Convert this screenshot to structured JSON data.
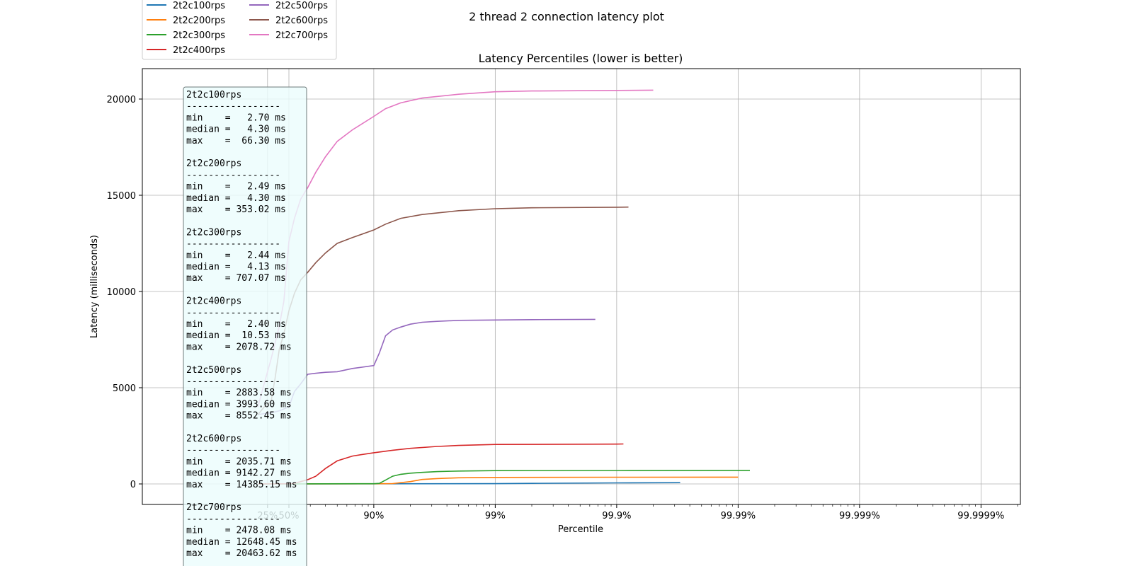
{
  "figure_title": "2 thread 2 connection latency plot",
  "chart_data": {
    "type": "line",
    "title": "Latency Percentiles (lower is better)",
    "xlabel": "Percentile",
    "ylabel": "Latency (milliseconds)",
    "x_scale": "log of 1/(1 - percentile)",
    "xlim_percentile": [
      "~10%",
      "99.9999%"
    ],
    "ylim": [
      -1200,
      21500
    ],
    "x_ticks": [
      {
        "p": 0.25,
        "label": "25%"
      },
      {
        "p": 0.5,
        "label": "50%"
      },
      {
        "p": 0.9,
        "label": "90%"
      },
      {
        "p": 0.99,
        "label": "99%"
      },
      {
        "p": 0.999,
        "label": "99.9%"
      },
      {
        "p": 0.9999,
        "label": "99.99%"
      },
      {
        "p": 0.99999,
        "label": "99.999%"
      },
      {
        "p": 0.999999,
        "label": "99.9999%"
      }
    ],
    "y_ticks": [
      0,
      5000,
      10000,
      15000,
      20000
    ],
    "grid": true,
    "legend_position": "top-left, above plot, 2 columns",
    "series": [
      {
        "name": "2t2c100rps",
        "color": "#1f77b4",
        "points": [
          [
            0.1,
            5
          ],
          [
            0.5,
            5
          ],
          [
            0.9,
            6
          ],
          [
            0.99,
            15
          ],
          [
            0.995,
            30
          ],
          [
            0.999,
            55
          ],
          [
            0.9995,
            62
          ],
          [
            0.9997,
            66.3
          ]
        ]
      },
      {
        "name": "2t2c200rps",
        "color": "#ff7f0e",
        "points": [
          [
            0.1,
            4
          ],
          [
            0.5,
            5
          ],
          [
            0.9,
            6
          ],
          [
            0.93,
            20
          ],
          [
            0.95,
            120
          ],
          [
            0.96,
            230
          ],
          [
            0.97,
            280
          ],
          [
            0.98,
            320
          ],
          [
            0.99,
            340
          ],
          [
            0.999,
            350
          ],
          [
            0.9999,
            353.02
          ]
        ]
      },
      {
        "name": "2t2c300rps",
        "color": "#2ca02c",
        "points": [
          [
            0.1,
            4
          ],
          [
            0.5,
            5
          ],
          [
            0.9,
            10
          ],
          [
            0.91,
            30
          ],
          [
            0.92,
            200
          ],
          [
            0.93,
            400
          ],
          [
            0.94,
            500
          ],
          [
            0.95,
            560
          ],
          [
            0.96,
            600
          ],
          [
            0.97,
            640
          ],
          [
            0.98,
            670
          ],
          [
            0.99,
            690
          ],
          [
            0.999,
            700
          ],
          [
            0.9999,
            705
          ],
          [
            0.99992,
            707.07
          ]
        ]
      },
      {
        "name": "2t2c400rps",
        "color": "#d62728",
        "points": [
          [
            0.1,
            3
          ],
          [
            0.3,
            5
          ],
          [
            0.5,
            10
          ],
          [
            0.55,
            30
          ],
          [
            0.6,
            120
          ],
          [
            0.65,
            220
          ],
          [
            0.7,
            400
          ],
          [
            0.75,
            800
          ],
          [
            0.8,
            1200
          ],
          [
            0.85,
            1450
          ],
          [
            0.9,
            1620
          ],
          [
            0.93,
            1750
          ],
          [
            0.95,
            1850
          ],
          [
            0.97,
            1950
          ],
          [
            0.98,
            2000
          ],
          [
            0.99,
            2050
          ],
          [
            0.999,
            2070
          ],
          [
            0.99912,
            2078.72
          ]
        ]
      },
      {
        "name": "2t2c500rps",
        "color": "#9467bd",
        "points": [
          [
            0.1,
            3600
          ],
          [
            0.2,
            3650
          ],
          [
            0.3,
            3700
          ],
          [
            0.4,
            3800
          ],
          [
            0.5,
            4000
          ],
          [
            0.55,
            4800
          ],
          [
            0.6,
            5200
          ],
          [
            0.65,
            5700
          ],
          [
            0.7,
            5750
          ],
          [
            0.75,
            5800
          ],
          [
            0.8,
            5830
          ],
          [
            0.85,
            6000
          ],
          [
            0.9,
            6150
          ],
          [
            0.91,
            6800
          ],
          [
            0.92,
            7700
          ],
          [
            0.93,
            8000
          ],
          [
            0.94,
            8150
          ],
          [
            0.95,
            8300
          ],
          [
            0.96,
            8400
          ],
          [
            0.97,
            8450
          ],
          [
            0.98,
            8500
          ],
          [
            0.99,
            8520
          ],
          [
            0.995,
            8535
          ],
          [
            0.9985,
            8552.45
          ]
        ]
      },
      {
        "name": "2t2c600rps",
        "color": "#8c564b",
        "points": [
          [
            0.1,
            3600
          ],
          [
            0.2,
            4000
          ],
          [
            0.3,
            4300
          ],
          [
            0.35,
            5500
          ],
          [
            0.4,
            7000
          ],
          [
            0.45,
            7800
          ],
          [
            0.5,
            9000
          ],
          [
            0.55,
            9900
          ],
          [
            0.6,
            10600
          ],
          [
            0.65,
            11000
          ],
          [
            0.7,
            11500
          ],
          [
            0.75,
            12000
          ],
          [
            0.8,
            12500
          ],
          [
            0.85,
            12800
          ],
          [
            0.9,
            13200
          ],
          [
            0.92,
            13500
          ],
          [
            0.94,
            13800
          ],
          [
            0.96,
            14000
          ],
          [
            0.98,
            14200
          ],
          [
            0.99,
            14300
          ],
          [
            0.995,
            14350
          ],
          [
            0.999,
            14380
          ],
          [
            0.9992,
            14385.15
          ]
        ]
      },
      {
        "name": "2t2c700rps",
        "color": "#e377c2",
        "points": [
          [
            0.1,
            4000
          ],
          [
            0.2,
            5200
          ],
          [
            0.3,
            6500
          ],
          [
            0.4,
            8200
          ],
          [
            0.45,
            9500
          ],
          [
            0.5,
            12600
          ],
          [
            0.55,
            13800
          ],
          [
            0.6,
            14800
          ],
          [
            0.65,
            15400
          ],
          [
            0.7,
            16200
          ],
          [
            0.75,
            17000
          ],
          [
            0.8,
            17800
          ],
          [
            0.85,
            18400
          ],
          [
            0.9,
            19100
          ],
          [
            0.92,
            19500
          ],
          [
            0.94,
            19800
          ],
          [
            0.96,
            20050
          ],
          [
            0.98,
            20250
          ],
          [
            0.99,
            20380
          ],
          [
            0.995,
            20420
          ],
          [
            0.999,
            20450
          ],
          [
            0.9995,
            20463.62
          ]
        ]
      }
    ]
  },
  "stats_box": [
    {
      "name": "2t2c100rps",
      "divider": "-----------------",
      "min": "min    =   2.70 ms",
      "median": "median =   4.30 ms",
      "max": "max    =  66.30 ms"
    },
    {
      "name": "2t2c200rps",
      "divider": "-----------------",
      "min": "min    =   2.49 ms",
      "median": "median =   4.30 ms",
      "max": "max    = 353.02 ms"
    },
    {
      "name": "2t2c300rps",
      "divider": "-----------------",
      "min": "min    =   2.44 ms",
      "median": "median =   4.13 ms",
      "max": "max    = 707.07 ms"
    },
    {
      "name": "2t2c400rps",
      "divider": "-----------------",
      "min": "min    =   2.40 ms",
      "median": "median =  10.53 ms",
      "max": "max    = 2078.72 ms"
    },
    {
      "name": "2t2c500rps",
      "divider": "-----------------",
      "min": "min    = 2883.58 ms",
      "median": "median = 3993.60 ms",
      "max": "max    = 8552.45 ms"
    },
    {
      "name": "2t2c600rps",
      "divider": "-----------------",
      "min": "min    = 2035.71 ms",
      "median": "median = 9142.27 ms",
      "max": "max    = 14385.15 ms"
    },
    {
      "name": "2t2c700rps",
      "divider": "-----------------",
      "min": "min    = 2478.08 ms",
      "median": "median = 12648.45 ms",
      "max": "max    = 20463.62 ms"
    }
  ]
}
